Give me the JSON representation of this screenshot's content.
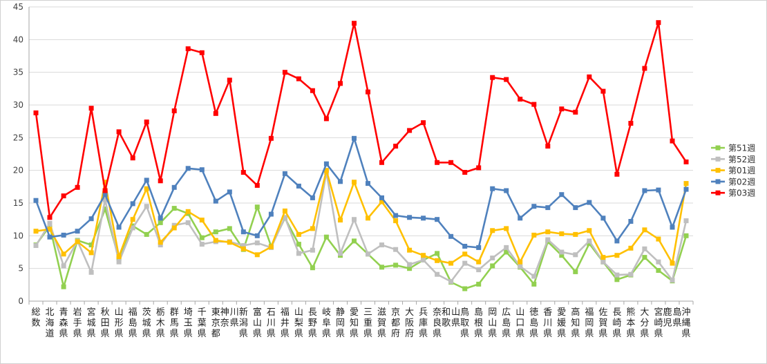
{
  "chart_data": {
    "type": "line",
    "ylim": [
      0,
      45
    ],
    "yticks": [
      0,
      5,
      10,
      15,
      20,
      25,
      30,
      35,
      40,
      45
    ],
    "grid": true,
    "legend_position": "right",
    "categories": [
      "総数",
      "北海道",
      "青森県",
      "岩手県",
      "宮城県",
      "秋田県",
      "山形県",
      "福島県",
      "茨城県",
      "栃木県",
      "群馬県",
      "埼玉県",
      "千葉県",
      "東京都",
      "神奈川県",
      "新潟県",
      "富山県",
      "石川県",
      "福井県",
      "山梨県",
      "長野県",
      "岐阜県",
      "静岡県",
      "愛知県",
      "三重県",
      "滋賀県",
      "京都府",
      "大阪府",
      "兵庫県",
      "奈良県",
      "和歌山県",
      "鳥取県",
      "島根県",
      "岡山県",
      "広島県",
      "山口県",
      "徳島県",
      "香川県",
      "愛媛県",
      "高知県",
      "福岡県",
      "佐賀県",
      "長崎県",
      "熊本県",
      "大分県",
      "宮崎県",
      "鹿児島県",
      "沖縄県"
    ],
    "series": [
      {
        "name": "第51週",
        "color": "#92d050",
        "marker": "square",
        "values": [
          8.6,
          11.5,
          2.2,
          9.3,
          8.6,
          14.1,
          6.5,
          11.5,
          10.2,
          12.0,
          14.2,
          13.4,
          9.7,
          10.6,
          11.1,
          7.9,
          14.4,
          8.4,
          12.7,
          8.7,
          5.1,
          9.8,
          7.0,
          9.2,
          7.2,
          5.2,
          5.5,
          5.0,
          6.3,
          7.3,
          2.9,
          1.9,
          2.6,
          5.4,
          7.5,
          5.2,
          2.6,
          9.1,
          7.0,
          4.5,
          8.8,
          6.0,
          3.3,
          4.0,
          6.7,
          4.7,
          3.1,
          10.0
        ]
      },
      {
        "name": "第52週",
        "color": "#bfbfbf",
        "marker": "square",
        "values": [
          8.5,
          11.9,
          5.4,
          9.2,
          4.4,
          15.5,
          6.0,
          11.2,
          14.5,
          8.6,
          11.6,
          12.0,
          8.7,
          9.1,
          9.1,
          8.5,
          8.9,
          8.2,
          12.8,
          7.3,
          7.8,
          19.7,
          7.3,
          12.5,
          7.2,
          8.6,
          7.9,
          5.6,
          6.3,
          4.1,
          3.0,
          5.8,
          4.8,
          6.6,
          8.2,
          5.3,
          3.8,
          9.4,
          7.5,
          7.1,
          9.2,
          6.0,
          4.0,
          4.1,
          8.0,
          6.0,
          3.2,
          12.3
        ]
      },
      {
        "name": "第01週",
        "color": "#ffc000",
        "marker": "square",
        "values": [
          10.7,
          11.0,
          7.2,
          9.1,
          7.4,
          18.2,
          6.8,
          12.5,
          17.2,
          9.0,
          11.2,
          13.7,
          12.4,
          9.3,
          9.0,
          8.0,
          7.1,
          8.3,
          13.8,
          10.2,
          11.1,
          20.0,
          12.4,
          18.2,
          12.7,
          15.2,
          12.3,
          7.8,
          7.0,
          6.2,
          5.8,
          7.2,
          6.0,
          10.8,
          11.1,
          6.0,
          10.1,
          10.6,
          10.3,
          10.2,
          10.8,
          6.7,
          7.0,
          8.1,
          10.9,
          9.5,
          5.8,
          18.0
        ]
      },
      {
        "name": "第02週",
        "color": "#4f81bd",
        "marker": "square",
        "values": [
          15.4,
          9.8,
          10.1,
          10.7,
          12.6,
          16.3,
          11.3,
          14.9,
          18.5,
          12.7,
          17.4,
          20.3,
          20.1,
          15.3,
          16.7,
          10.6,
          10.0,
          13.3,
          19.5,
          17.6,
          15.8,
          21.0,
          18.3,
          24.9,
          18.0,
          15.8,
          13.1,
          12.8,
          12.7,
          12.5,
          9.9,
          8.4,
          8.2,
          17.2,
          16.9,
          12.7,
          14.5,
          14.3,
          16.3,
          14.3,
          15.1,
          12.7,
          9.2,
          12.2,
          16.9,
          17.0,
          11.3,
          17.1
        ]
      },
      {
        "name": "第03週",
        "color": "#ff0000",
        "marker": "square",
        "values": [
          28.8,
          12.8,
          16.1,
          17.4,
          29.5,
          16.9,
          25.9,
          21.9,
          27.4,
          18.4,
          29.1,
          38.6,
          38.0,
          28.7,
          33.8,
          19.7,
          17.7,
          24.9,
          35.0,
          34.0,
          32.2,
          27.9,
          33.3,
          42.5,
          32.0,
          21.2,
          23.7,
          26.1,
          27.3,
          21.2,
          21.2,
          19.7,
          20.4,
          34.2,
          33.9,
          30.9,
          30.1,
          23.7,
          29.4,
          28.9,
          34.3,
          32.1,
          19.4,
          27.2,
          35.6,
          42.6,
          24.5,
          21.3
        ]
      }
    ]
  }
}
